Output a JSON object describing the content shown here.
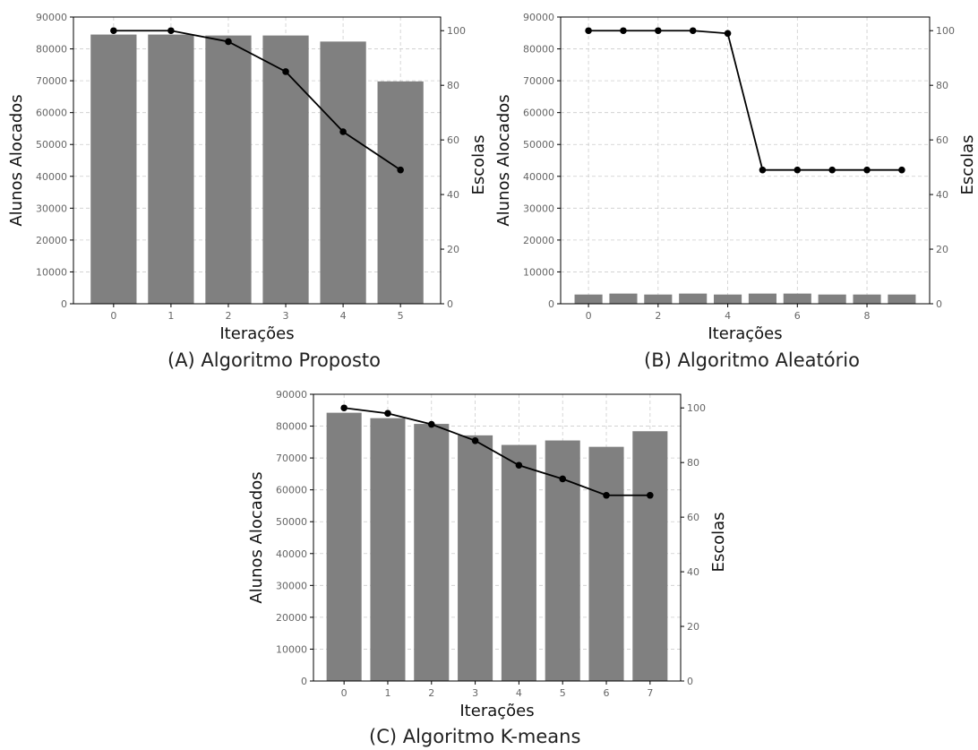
{
  "chart_data": [
    {
      "type": "bar",
      "caption": "(A) Algoritmo Proposto",
      "xlabel": "Iterações",
      "ylabel": "Alunos Alocados",
      "y2label": "Escolas",
      "categories": [
        0,
        1,
        2,
        3,
        4,
        5
      ],
      "xticks": [
        0,
        1,
        2,
        3,
        4,
        5
      ],
      "xlim": [
        -0.7,
        5.7
      ],
      "ylim": [
        0,
        90000
      ],
      "yticks": [
        0,
        10000,
        20000,
        30000,
        40000,
        50000,
        60000,
        70000,
        80000,
        90000
      ],
      "y2lim": [
        0,
        105
      ],
      "y2ticks": [
        0,
        20,
        40,
        60,
        80,
        100
      ],
      "grid": true,
      "bar_values": [
        84500,
        84500,
        84200,
        84200,
        82300,
        69800
      ],
      "line_values": [
        100,
        100,
        96,
        85,
        63,
        49
      ],
      "colors": {
        "bar": "#808080",
        "line": "#000000",
        "grid": "#cccccc"
      }
    },
    {
      "type": "bar",
      "caption": "(B) Algoritmo Aleatório",
      "xlabel": "Iterações",
      "ylabel": "Alunos Alocados",
      "y2label": "Escolas",
      "categories": [
        0,
        1,
        2,
        3,
        4,
        5,
        6,
        7,
        8,
        9
      ],
      "xticks": [
        0,
        2,
        4,
        6,
        8
      ],
      "xlim": [
        -0.8,
        9.8
      ],
      "ylim": [
        0,
        90000
      ],
      "yticks": [
        0,
        10000,
        20000,
        30000,
        40000,
        50000,
        60000,
        70000,
        80000,
        90000
      ],
      "y2lim": [
        0,
        105
      ],
      "y2ticks": [
        0,
        20,
        40,
        60,
        80,
        100
      ],
      "grid": true,
      "bar_values": [
        2900,
        3200,
        2900,
        3200,
        2900,
        3200,
        3200,
        2900,
        2900,
        2900
      ],
      "line_values": [
        100,
        100,
        100,
        100,
        99,
        49,
        49,
        49,
        49,
        49
      ],
      "colors": {
        "bar": "#808080",
        "line": "#000000",
        "grid": "#cccccc"
      }
    },
    {
      "type": "bar",
      "caption": "(C) Algoritmo K-means",
      "xlabel": "Iterações",
      "ylabel": "Alunos Alocados",
      "y2label": "Escolas",
      "categories": [
        0,
        1,
        2,
        3,
        4,
        5,
        6,
        7
      ],
      "xticks": [
        0,
        1,
        2,
        3,
        4,
        5,
        6,
        7
      ],
      "xlim": [
        -0.7,
        7.7
      ],
      "ylim": [
        0,
        90000
      ],
      "yticks": [
        0,
        10000,
        20000,
        30000,
        40000,
        50000,
        60000,
        70000,
        80000,
        90000
      ],
      "y2lim": [
        0,
        105
      ],
      "y2ticks": [
        0,
        20,
        40,
        60,
        80,
        100
      ],
      "grid": true,
      "bar_values": [
        84200,
        82500,
        80700,
        77100,
        74100,
        75500,
        73500,
        78400
      ],
      "line_values": [
        100,
        98,
        94,
        88,
        79,
        74,
        68,
        68
      ],
      "colors": {
        "bar": "#808080",
        "line": "#000000",
        "grid": "#cccccc"
      }
    }
  ]
}
